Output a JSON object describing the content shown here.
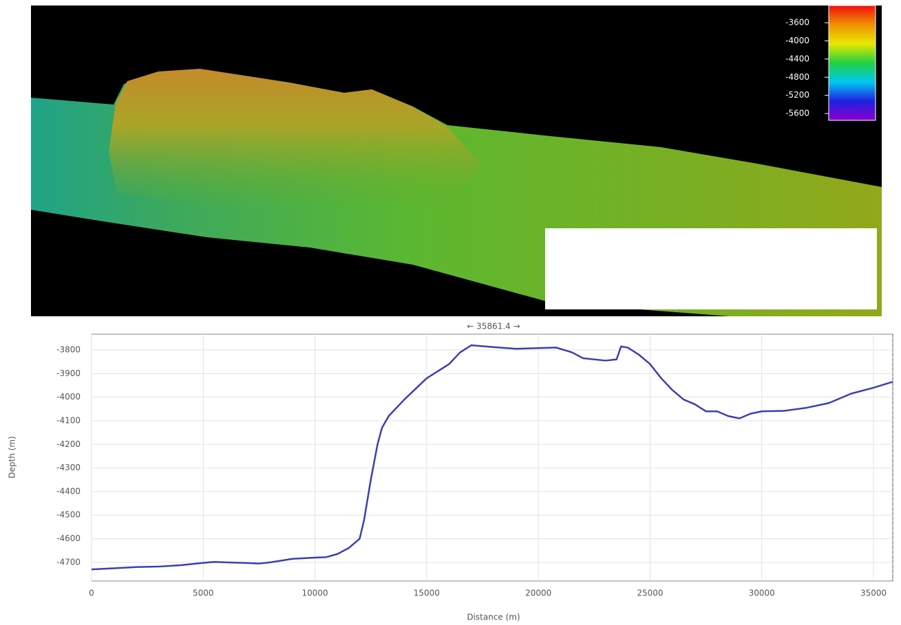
{
  "chart_data": {
    "type": "line",
    "annotation": "← 35861.4 →",
    "xlabel": "Distance (m)",
    "ylabel": "Depth (m)",
    "color": "#3b3fb0",
    "grid": true,
    "x": [
      0,
      1000,
      2000,
      3000,
      4000,
      5000,
      5500,
      6000,
      7000,
      7500,
      8000,
      9000,
      10000,
      10500,
      11000,
      11500,
      12000,
      12200,
      12500,
      12800,
      13000,
      13300,
      14000,
      15000,
      16000,
      16500,
      17000,
      18000,
      19000,
      20000,
      20800,
      21500,
      22000,
      23000,
      23500,
      23700,
      24000,
      24500,
      25000,
      25500,
      26000,
      26500,
      27000,
      27500,
      28000,
      28500,
      29000,
      29500,
      30000,
      31000,
      32000,
      33000,
      34000,
      35000,
      35861.4
    ],
    "values": [
      -4730,
      -4725,
      -4720,
      -4718,
      -4712,
      -4702,
      -4698,
      -4700,
      -4703,
      -4705,
      -4700,
      -4685,
      -4680,
      -4678,
      -4665,
      -4640,
      -4600,
      -4520,
      -4350,
      -4200,
      -4130,
      -4080,
      -4010,
      -3920,
      -3860,
      -3810,
      -3780,
      -3788,
      -3795,
      -3792,
      -3790,
      -3810,
      -3835,
      -3845,
      -3840,
      -3785,
      -3790,
      -3820,
      -3860,
      -3920,
      -3970,
      -4010,
      -4030,
      -4060,
      -4060,
      -4080,
      -4090,
      -4070,
      -4060,
      -4058,
      -4045,
      -4025,
      -3985,
      -3960,
      -3935
    ],
    "xlim": [
      0,
      35861.4
    ],
    "ylim": [
      -4779,
      -3733
    ],
    "xticks": [
      0,
      5000,
      10000,
      15000,
      20000,
      25000,
      30000,
      35000
    ],
    "yticks": [
      -3800,
      -3900,
      -4000,
      -4100,
      -4200,
      -4300,
      -4400,
      -4500,
      -4600,
      -4700
    ]
  },
  "color_scale": {
    "range": [
      -5750,
      -3220
    ],
    "ticks": [
      -3600,
      -4000,
      -4400,
      -4800,
      -5200,
      -5600
    ],
    "colors": [
      "#8a00d0",
      "#2020e0",
      "#00c8f0",
      "#20d040",
      "#e8e800",
      "#f09000",
      "#f01010"
    ]
  }
}
